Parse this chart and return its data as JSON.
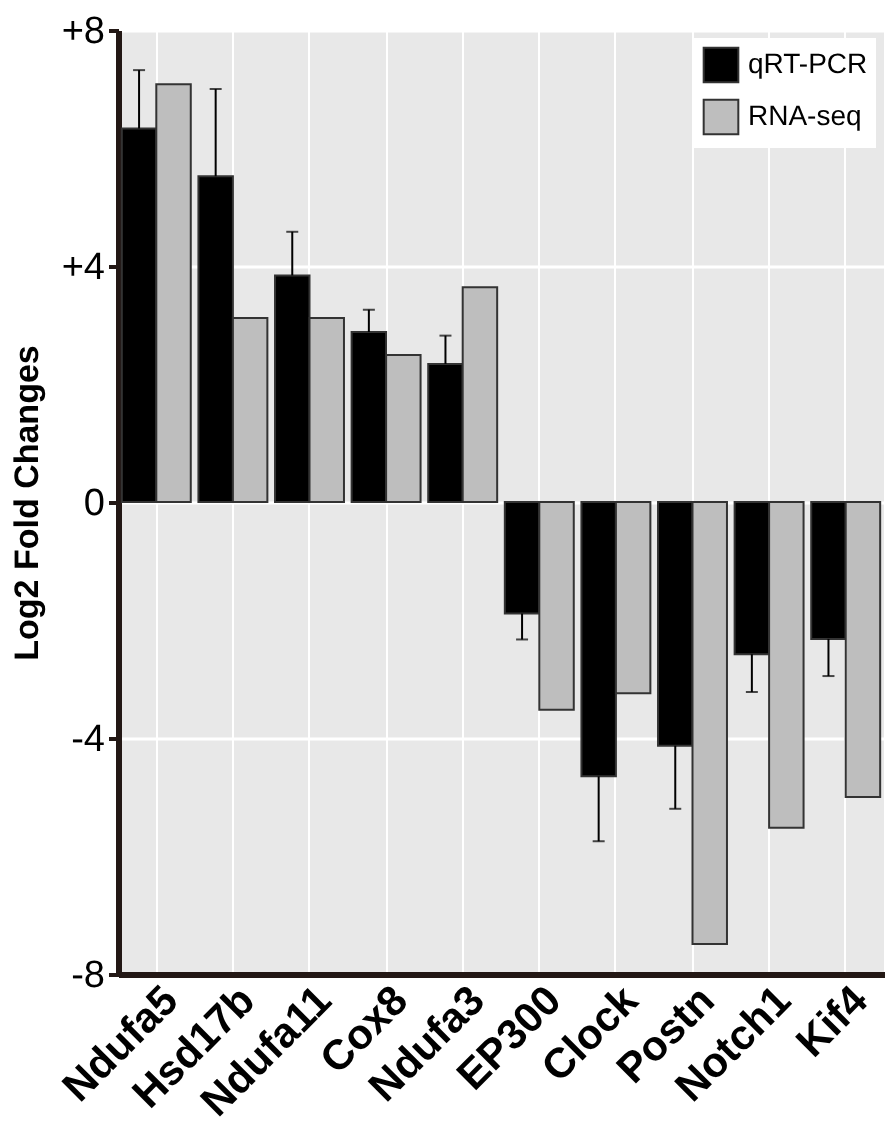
{
  "chart_data": {
    "type": "bar",
    "ylabel": "Log2 Fold Changes",
    "categories": [
      "Ndufa5",
      "Hsd17b",
      "Ndufa11",
      "Cox8",
      "Ndufa3",
      "EP300",
      "Clock",
      "Postn",
      "Notch1",
      "Kif4"
    ],
    "series": [
      {
        "name": "qRT-PCR",
        "color": "#000000",
        "values": [
          6.33,
          5.52,
          3.84,
          2.88,
          2.34,
          -1.89,
          -4.65,
          -4.13,
          -2.58,
          -2.32
        ],
        "errors": [
          [
            6.33,
            7.32
          ],
          [
            5.52,
            7.0
          ],
          [
            3.84,
            4.58
          ],
          [
            2.88,
            3.26
          ],
          [
            2.34,
            2.82
          ],
          [
            -2.33,
            -1.89
          ],
          [
            -5.75,
            -4.65
          ],
          [
            -5.2,
            -4.13
          ],
          [
            -3.22,
            -2.58
          ],
          [
            -2.95,
            -2.32
          ]
        ]
      },
      {
        "name": "RNA-seq",
        "color": "#bebebe",
        "values": [
          7.08,
          3.12,
          3.12,
          2.49,
          3.64,
          -3.52,
          -3.24,
          -7.49,
          -5.52,
          -5.0
        ]
      }
    ],
    "ylim": [
      -8,
      8
    ],
    "yticks": [
      {
        "value": 8,
        "label": "+8"
      },
      {
        "value": 4,
        "label": "+4"
      },
      0,
      {
        "value": -4,
        "label": "-4"
      },
      {
        "value": -8,
        "label": "-8"
      }
    ],
    "grid": true,
    "legend": "top right"
  }
}
